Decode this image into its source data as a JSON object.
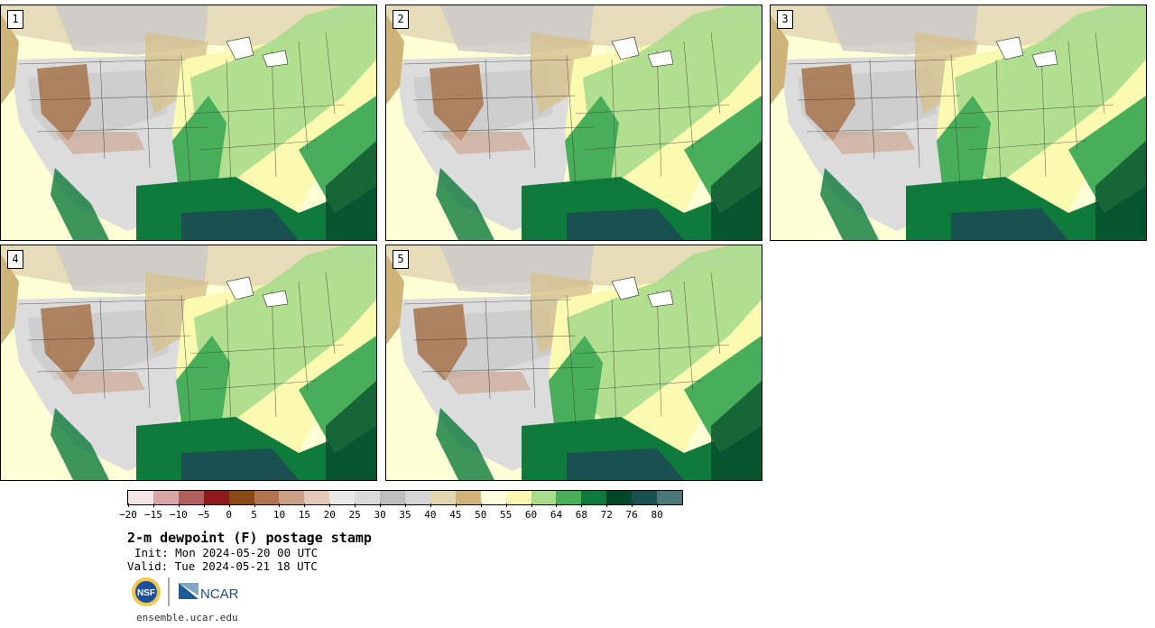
{
  "panels": [
    {
      "label": "1"
    },
    {
      "label": "2"
    },
    {
      "label": "3"
    },
    {
      "label": "4"
    },
    {
      "label": "5"
    }
  ],
  "colorbar": {
    "colors": [
      "#f4e6e6",
      "#d6a6a6",
      "#b05e5e",
      "#8c1a1a",
      "#8a4a16",
      "#b27450",
      "#c9a086",
      "#e2c8b6",
      "#e8e8e8",
      "#d9d9d9",
      "#bdbdbd",
      "#d6d6d6",
      "#e4d6b0",
      "#cfb47a",
      "#ffffdd",
      "#fafab0",
      "#a8dc8c",
      "#48ae5a",
      "#0e7a3c",
      "#04462a",
      "#1a5050",
      "#4a7878"
    ],
    "tick_labels": [
      "−20",
      "−15",
      "−10",
      "−5",
      "0",
      "5",
      "10",
      "15",
      "20",
      "25",
      "30",
      "35",
      "40",
      "45",
      "50",
      "55",
      "60",
      "64",
      "68",
      "72",
      "76",
      "80"
    ]
  },
  "title": "2-m dewpoint (F) postage stamp",
  "init_text": "Init: Mon 2024-05-20 00 UTC",
  "valid_text": "Valid: Tue 2024-05-21 18 UTC",
  "footer_url": "ensemble.ucar.edu",
  "logos": {
    "nsf": "NSF",
    "ncar": "NCAR"
  }
}
